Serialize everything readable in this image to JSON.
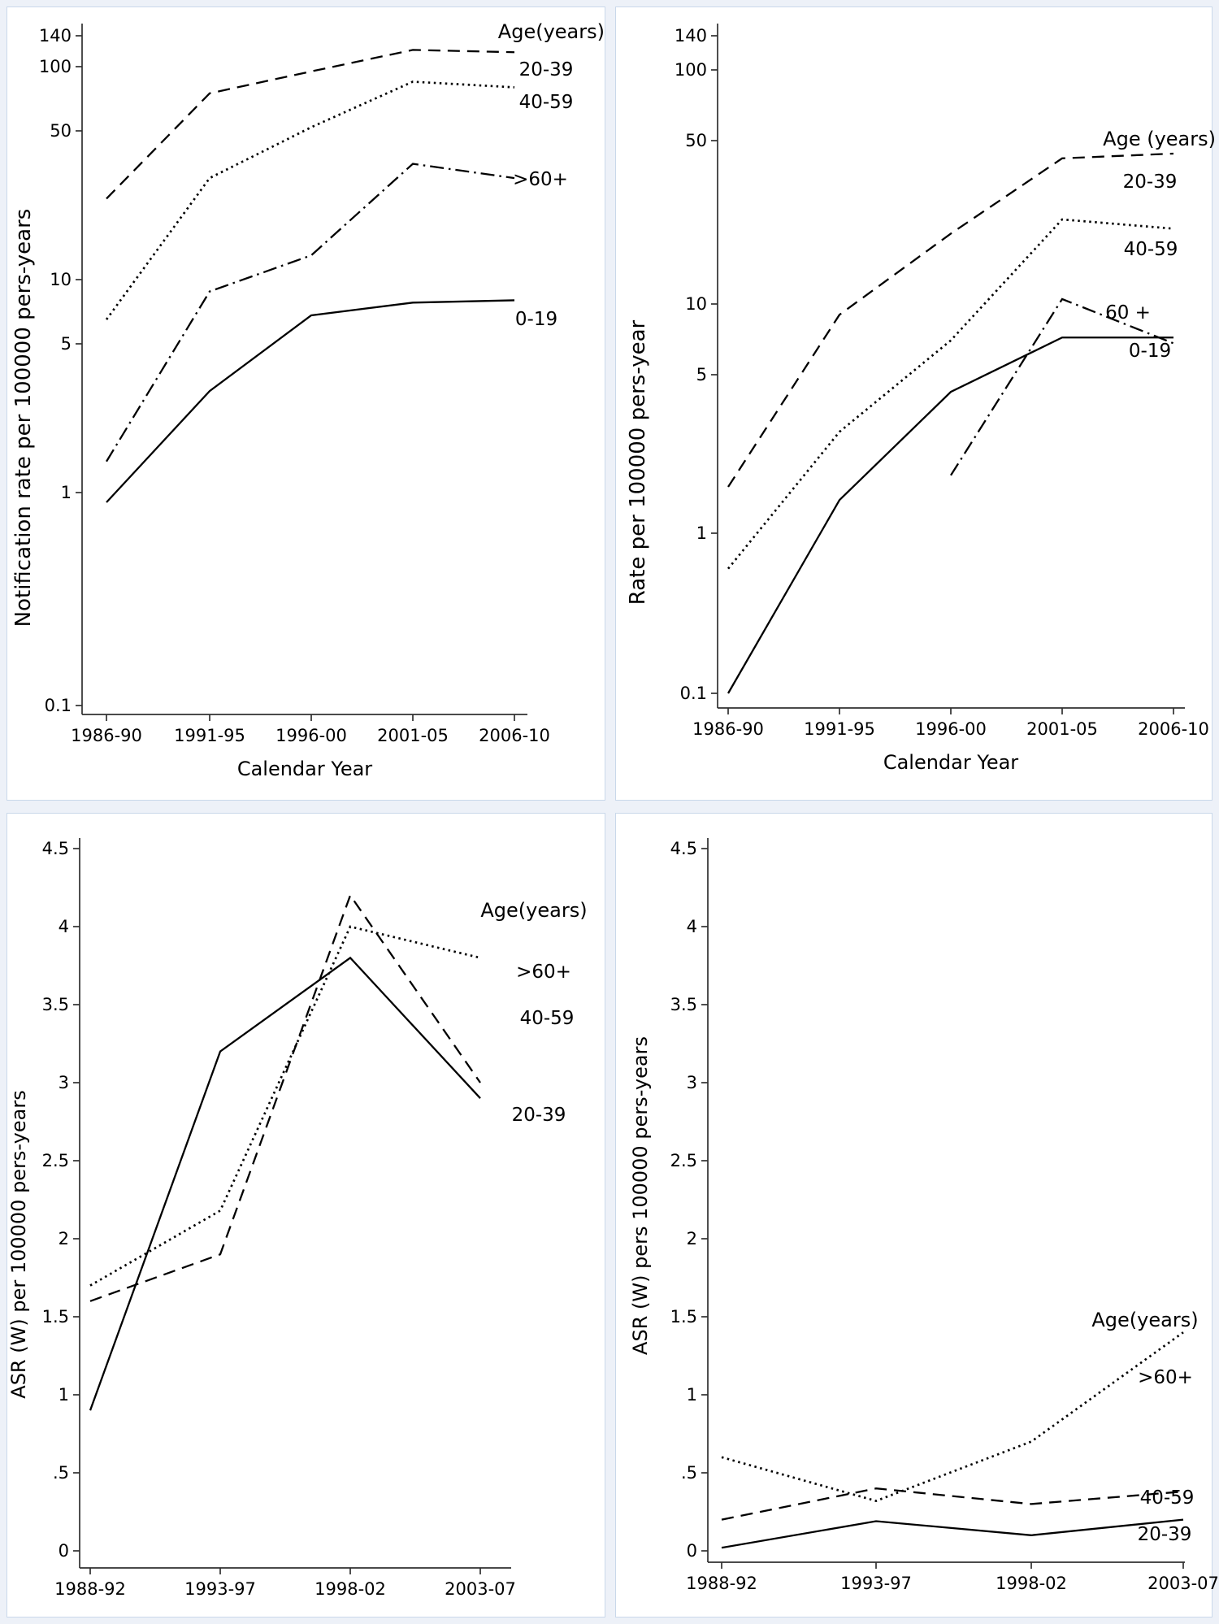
{
  "page": {
    "background_color": "#edf1f8",
    "panel_background": "#ffffff",
    "panel_border_color": "#c9d8ea",
    "line_color": "#000000"
  },
  "chart_data": [
    {
      "id": "top-left",
      "type": "line",
      "scale": "log",
      "ylabel": "Notification rate per 100000 pers-years",
      "xlabel": "Calendar Year",
      "legend_title": "Age(years)",
      "legend_position": "top-right-inside",
      "grid": false,
      "ylim": [
        0.1,
        140
      ],
      "x_categories": [
        "1986-90",
        "1991-95",
        "1996-00",
        "2001-05",
        "2006-10"
      ],
      "y_ticks": [
        {
          "v": 140,
          "label": "140"
        },
        {
          "v": 100,
          "label": "100"
        },
        {
          "v": 50,
          "label": "50"
        },
        {
          "v": 10,
          "label": "10"
        },
        {
          "v": 5,
          "label": "5"
        },
        {
          "v": 1,
          "label": "1"
        },
        {
          "v": 0.1,
          "label": "0.1"
        }
      ],
      "series": [
        {
          "name": "20-39",
          "style": "dashed",
          "values": [
            24,
            75,
            95,
            120,
            117
          ]
        },
        {
          "name": "40-59",
          "style": "dotted",
          "values": [
            6.5,
            30,
            52,
            85,
            80
          ]
        },
        {
          "name": ">60+",
          "style": "dashdot",
          "values": [
            1.4,
            8.8,
            13,
            35,
            30
          ]
        },
        {
          "name": "0-19",
          "style": "solid",
          "values": [
            0.9,
            3.0,
            6.8,
            7.8,
            8.0
          ]
        }
      ]
    },
    {
      "id": "top-right",
      "type": "line",
      "scale": "log",
      "ylabel": "Rate per 100000 pers-year",
      "xlabel": "Calendar Year",
      "legend_title": "Age (years)",
      "legend_position": "right-inside",
      "grid": false,
      "ylim": [
        0.1,
        140
      ],
      "x_categories": [
        "1986-90",
        "1991-95",
        "1996-00",
        "2001-05",
        "2006-10"
      ],
      "y_ticks": [
        {
          "v": 140,
          "label": "140"
        },
        {
          "v": 100,
          "label": "100"
        },
        {
          "v": 50,
          "label": "50"
        },
        {
          "v": 10,
          "label": "10"
        },
        {
          "v": 5,
          "label": "5"
        },
        {
          "v": 1,
          "label": "1"
        },
        {
          "v": 0.1,
          "label": "0.1"
        }
      ],
      "series": [
        {
          "name": "20-39",
          "style": "dashed",
          "values": [
            1.6,
            9,
            20,
            42,
            44
          ]
        },
        {
          "name": "40-59",
          "style": "dotted",
          "values": [
            0.6,
            2.8,
            7,
            23,
            21
          ]
        },
        {
          "name": "60 +",
          "style": "dashdot",
          "values": [
            null,
            null,
            1.8,
            10.5,
            6.8
          ]
        },
        {
          "name": "0-19",
          "style": "solid",
          "values": [
            0.1,
            1.4,
            4.2,
            7.2,
            7.2
          ]
        }
      ]
    },
    {
      "id": "bottom-left",
      "type": "line",
      "scale": "linear",
      "ylabel": "ASR (W) per 100000 pers-years",
      "xlabel": "",
      "legend_title": "Age(years)",
      "legend_position": "right-inside",
      "grid": false,
      "ylim": [
        0,
        4.5
      ],
      "x_categories": [
        "1988-92",
        "1993-97",
        "1998-02",
        "2003-07"
      ],
      "y_ticks": [
        {
          "v": 4.5,
          "label": "4.5"
        },
        {
          "v": 4,
          "label": "4"
        },
        {
          "v": 3.5,
          "label": "3.5"
        },
        {
          "v": 3,
          "label": "3"
        },
        {
          "v": 2.5,
          "label": "2.5"
        },
        {
          "v": 2,
          "label": "2"
        },
        {
          "v": 1.5,
          "label": "1.5"
        },
        {
          "v": 1,
          "label": "1"
        },
        {
          "v": 0.5,
          "label": ".5"
        },
        {
          "v": 0,
          "label": "0"
        }
      ],
      "series": [
        {
          "name": ">60+",
          "style": "dotted",
          "values": [
            1.7,
            2.18,
            4.0,
            3.8
          ]
        },
        {
          "name": "40-59",
          "style": "dashed",
          "values": [
            1.6,
            1.9,
            4.2,
            3.0
          ]
        },
        {
          "name": "20-39",
          "style": "solid",
          "values": [
            0.9,
            3.2,
            3.8,
            2.9
          ]
        }
      ]
    },
    {
      "id": "bottom-right",
      "type": "line",
      "scale": "linear",
      "ylabel": "ASR (W) pers 100000 pers-years",
      "xlabel": "",
      "legend_title": "Age(years)",
      "legend_position": "bottom-right-inside",
      "grid": false,
      "ylim": [
        0,
        4.5
      ],
      "x_categories": [
        "1988-92",
        "1993-97",
        "1998-02",
        "2003-07"
      ],
      "y_ticks": [
        {
          "v": 4.5,
          "label": "4.5"
        },
        {
          "v": 4,
          "label": "4"
        },
        {
          "v": 3.5,
          "label": "3.5"
        },
        {
          "v": 3,
          "label": "3"
        },
        {
          "v": 2.5,
          "label": "2.5"
        },
        {
          "v": 2,
          "label": "2"
        },
        {
          "v": 1.5,
          "label": "1.5"
        },
        {
          "v": 1,
          "label": "1"
        },
        {
          "v": 0.5,
          "label": ".5"
        },
        {
          "v": 0,
          "label": "0"
        }
      ],
      "series": [
        {
          "name": ">60+",
          "style": "dotted",
          "values": [
            0.6,
            0.32,
            0.7,
            1.4
          ]
        },
        {
          "name": "40-59",
          "style": "dashed",
          "values": [
            0.2,
            0.4,
            0.3,
            0.38
          ]
        },
        {
          "name": "20-39",
          "style": "solid",
          "values": [
            0.02,
            0.19,
            0.1,
            0.2
          ]
        }
      ]
    }
  ]
}
